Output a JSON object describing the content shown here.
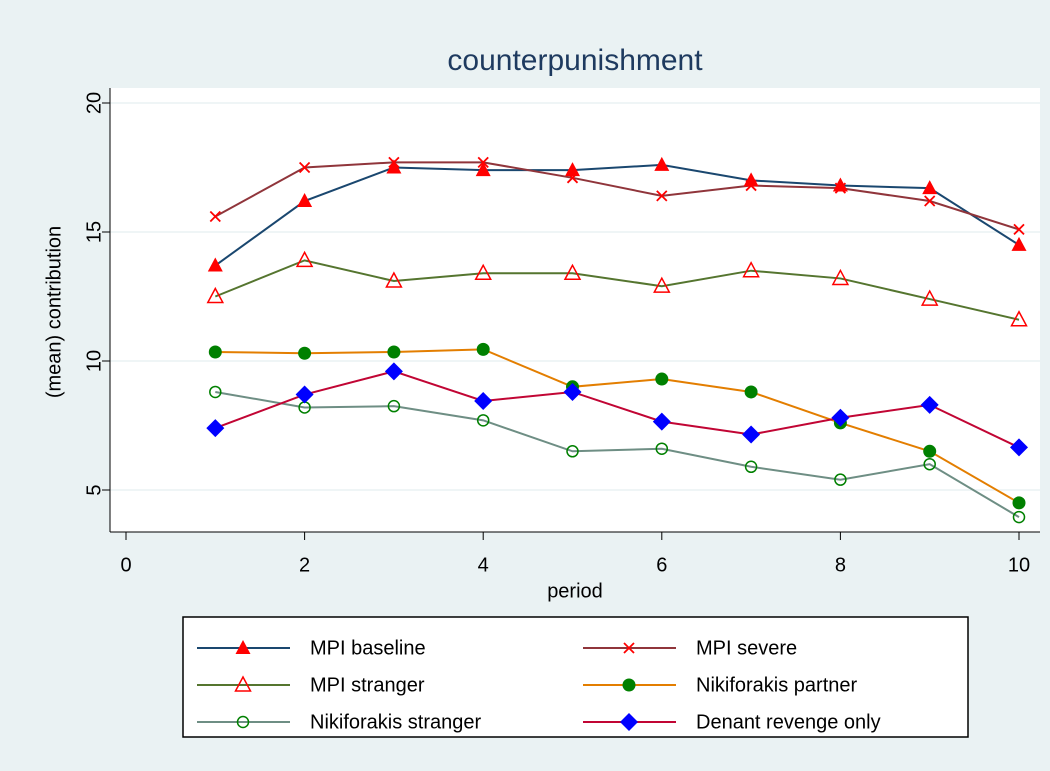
{
  "chart_data": {
    "type": "line",
    "title": "counterpunishment",
    "x_label": "period",
    "y_label": "(mean) contribution",
    "x": [
      1,
      2,
      3,
      4,
      5,
      6,
      7,
      8,
      9,
      10
    ],
    "xlim": [
      0,
      10
    ],
    "xticks": [
      0,
      2,
      4,
      6,
      8,
      10
    ],
    "ylim": [
      5,
      20
    ],
    "yticks": [
      5,
      10,
      15,
      20
    ],
    "grid": true,
    "series": [
      {
        "name": "MPI baseline",
        "color": "#1a476f",
        "marker": "triangle",
        "marker_color": "#ff0000",
        "values": [
          13.7,
          16.2,
          17.5,
          17.4,
          17.4,
          17.6,
          17.0,
          16.8,
          16.7,
          14.5
        ]
      },
      {
        "name": "MPI severe",
        "color": "#90353b",
        "marker": "x",
        "marker_color": "#ff0000",
        "values": [
          15.6,
          17.5,
          17.7,
          17.7,
          17.1,
          16.4,
          16.8,
          16.7,
          16.2,
          15.1
        ]
      },
      {
        "name": "MPI stranger",
        "color": "#55752f",
        "marker": "triangle-hollow",
        "marker_color": "#ff0000",
        "values": [
          12.5,
          13.9,
          13.1,
          13.4,
          13.4,
          12.9,
          13.5,
          13.2,
          12.4,
          11.6
        ]
      },
      {
        "name": "Nikiforakis partner",
        "color": "#e37e00",
        "marker": "circle",
        "marker_color": "#008000",
        "values": [
          10.35,
          10.3,
          10.35,
          10.45,
          9.0,
          9.3,
          8.8,
          7.6,
          6.5,
          4.5
        ]
      },
      {
        "name": "Nikiforakis stranger",
        "color": "#6e8e84",
        "marker": "circle-hollow",
        "marker_color": "#008000",
        "values": [
          8.8,
          8.2,
          8.25,
          7.7,
          6.5,
          6.6,
          5.9,
          5.4,
          6.0,
          3.95
        ]
      },
      {
        "name": "Denant revenge only",
        "color": "#c10534",
        "marker": "diamond",
        "marker_color": "#0000ff",
        "values": [
          7.4,
          8.7,
          9.6,
          8.45,
          8.8,
          7.65,
          7.15,
          7.8,
          8.3,
          6.65
        ]
      }
    ]
  }
}
